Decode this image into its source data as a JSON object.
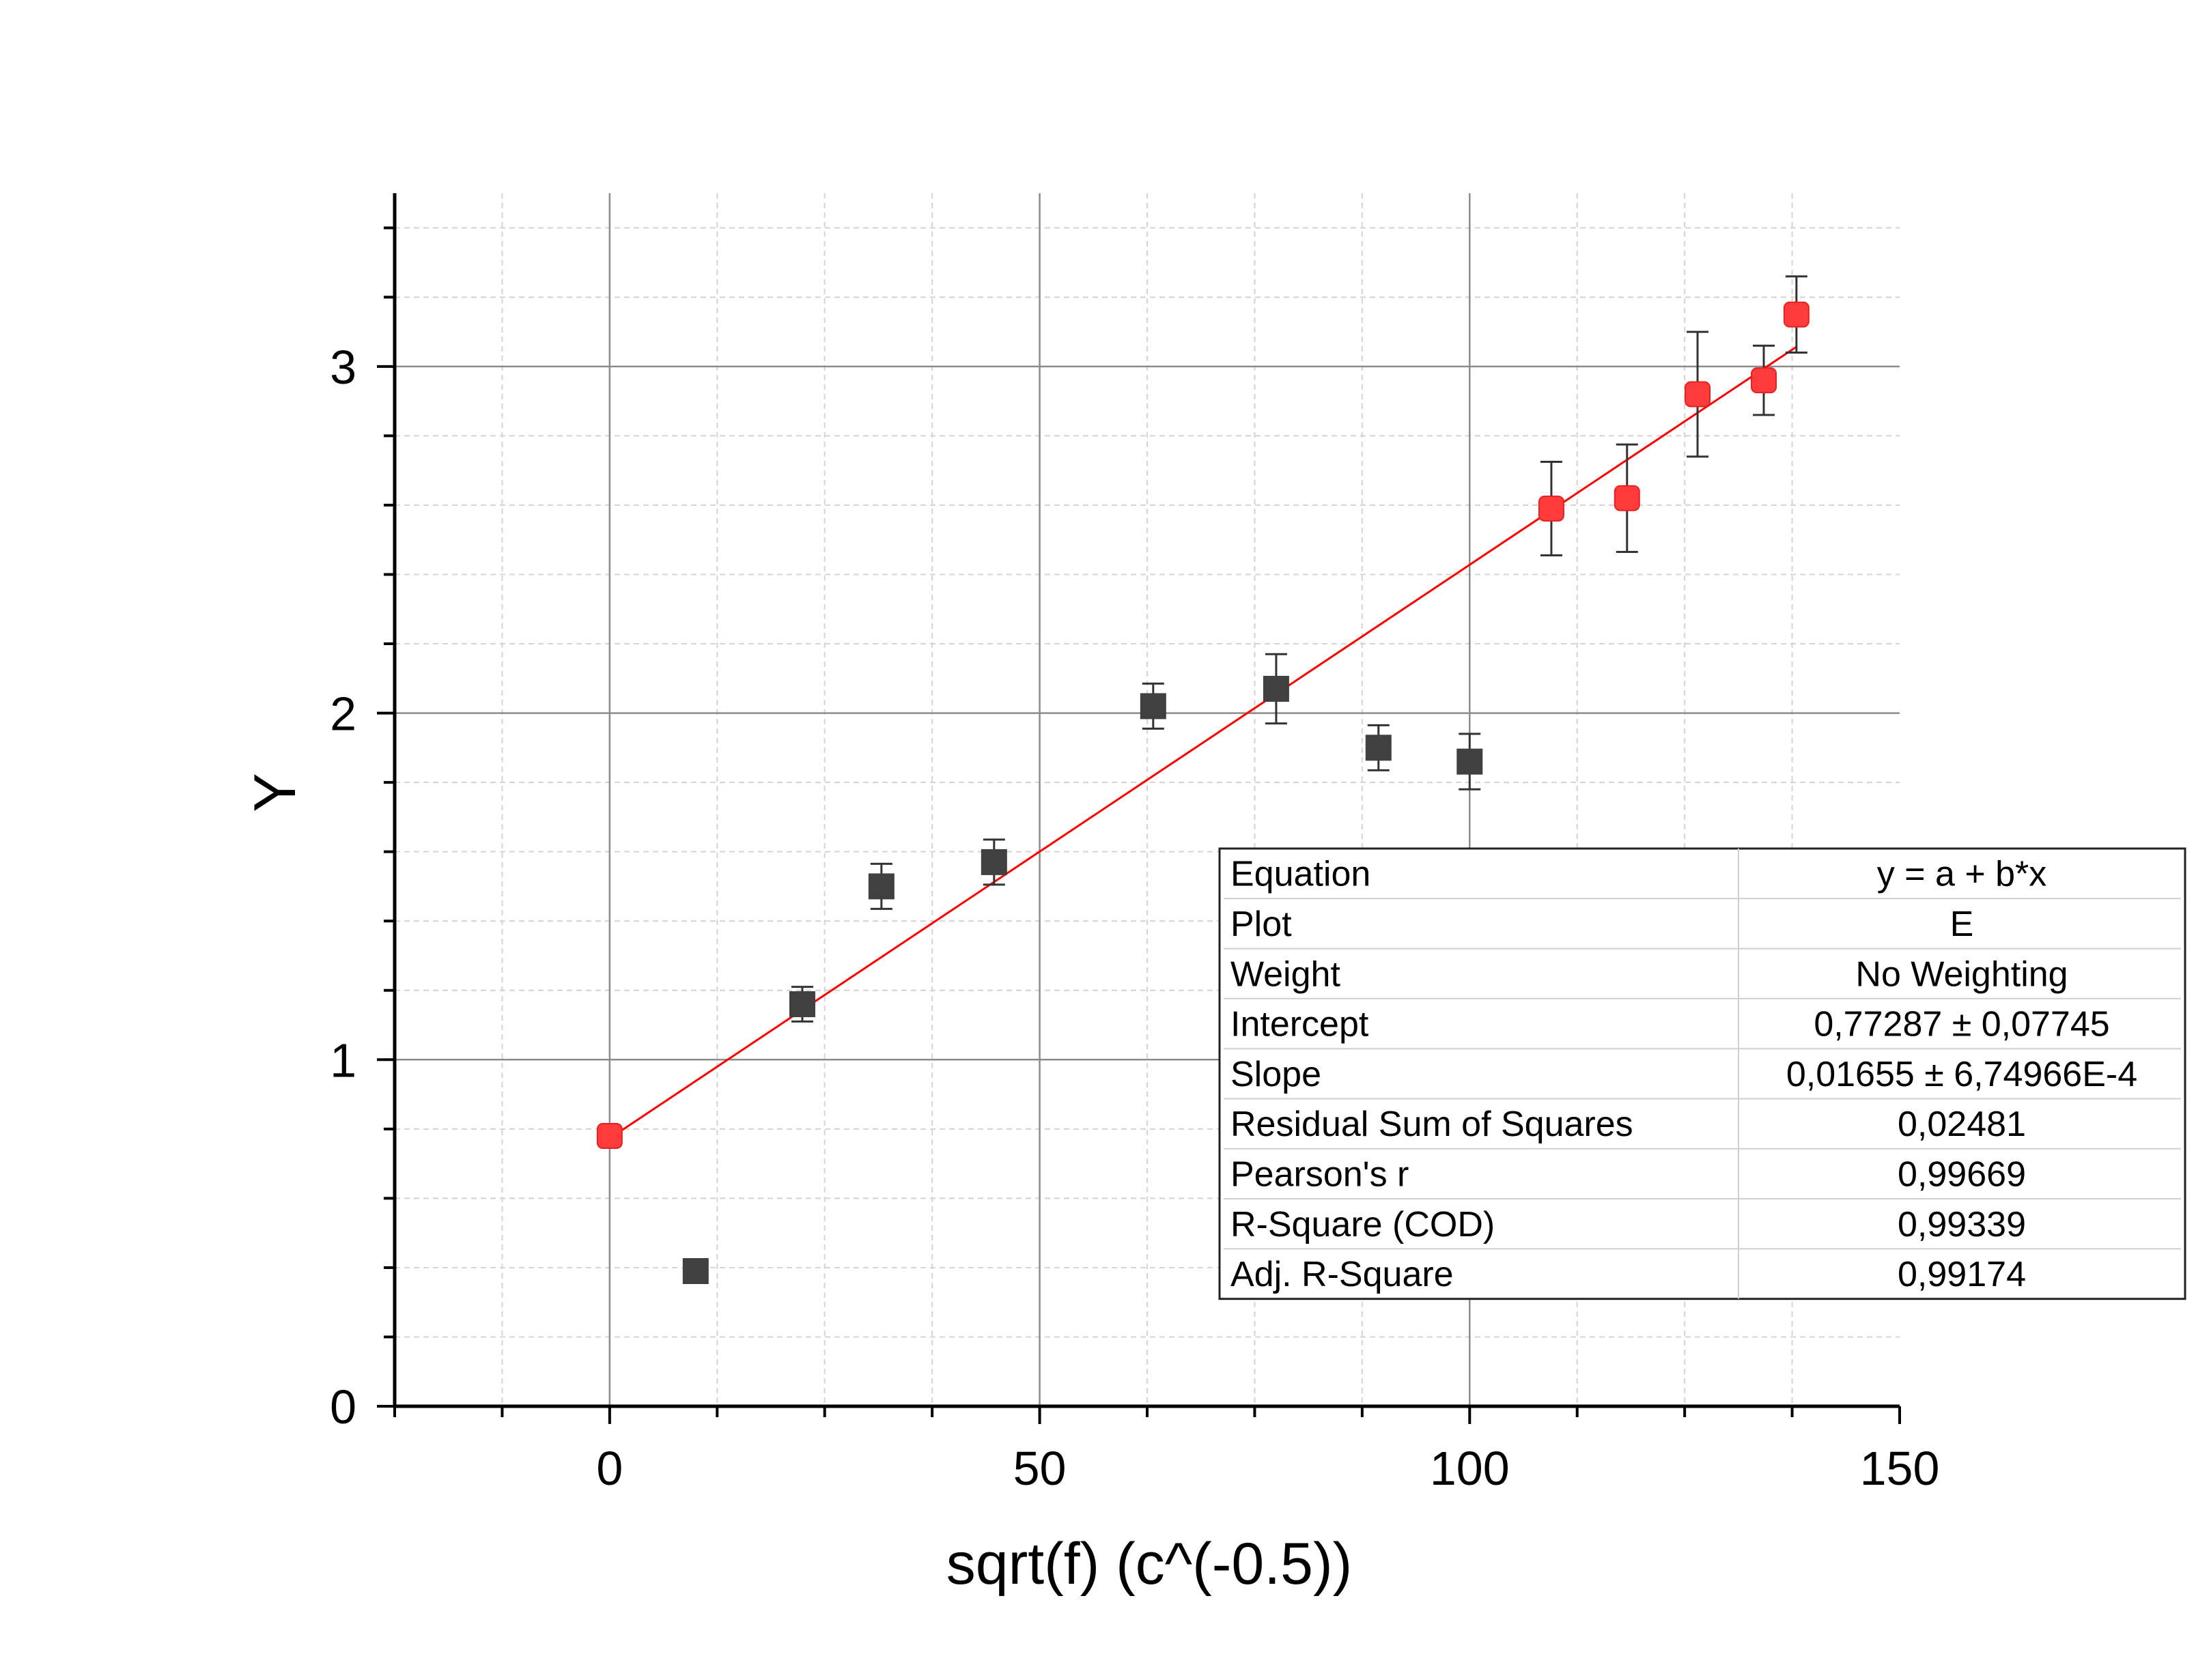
{
  "chart_data": {
    "type": "scatter",
    "title": "",
    "xlabel": "sqrt(f) (c^(-0.5))",
    "ylabel": "Y",
    "xlim": [
      -25,
      150
    ],
    "ylim": [
      0,
      3.5
    ],
    "x_ticks": [
      0,
      50,
      100,
      150
    ],
    "y_ticks": [
      0,
      1,
      2,
      3
    ],
    "grid": true,
    "series": [
      {
        "marker": "square",
        "color": "#404040",
        "points": [
          {
            "x": 10,
            "y": 0.39
          },
          {
            "x": 22.4,
            "y": 1.16,
            "err": 0.05
          },
          {
            "x": 31.6,
            "y": 1.5,
            "err": 0.065
          },
          {
            "x": 44.7,
            "y": 1.57,
            "err": 0.065
          },
          {
            "x": 63.2,
            "y": 2.02,
            "err": 0.065
          },
          {
            "x": 77.5,
            "y": 2.07,
            "err": 0.1
          },
          {
            "x": 89.4,
            "y": 1.9,
            "err": 0.065
          },
          {
            "x": 100,
            "y": 1.86,
            "err": 0.08
          }
        ]
      },
      {
        "marker": "square",
        "color": "#ff3b3b",
        "points": [
          {
            "x": 0,
            "y": 0.78,
            "err": 0.03
          },
          {
            "x": 109.5,
            "y": 2.59,
            "err": 0.135
          },
          {
            "x": 118.3,
            "y": 2.62,
            "err": 0.155
          },
          {
            "x": 126.5,
            "y": 2.92,
            "err": 0.18
          },
          {
            "x": 134.2,
            "y": 2.96,
            "err": 0.1
          },
          {
            "x": 138,
            "y": 3.15,
            "err": 0.11
          }
        ]
      }
    ],
    "fit_line": {
      "intercept": 0.77287,
      "slope": 0.01655,
      "x_range": [
        0,
        138
      ],
      "color": "#ff0000"
    },
    "stats_table": {
      "rows": [
        {
          "label": "Equation",
          "value": "y = a + b*x"
        },
        {
          "label": "Plot",
          "value": "E"
        },
        {
          "label": "Weight",
          "value": "No Weighting"
        },
        {
          "label": "Intercept",
          "value": "0,77287 ± 0,07745"
        },
        {
          "label": "Slope",
          "value": "0,01655 ± 6,74966E-4"
        },
        {
          "label": "Residual Sum of Squares",
          "value": "0,02481"
        },
        {
          "label": "Pearson's r",
          "value": "0,99669"
        },
        {
          "label": "R-Square (COD)",
          "value": "0,99339"
        },
        {
          "label": "Adj. R-Square",
          "value": "0,99174"
        }
      ]
    }
  }
}
